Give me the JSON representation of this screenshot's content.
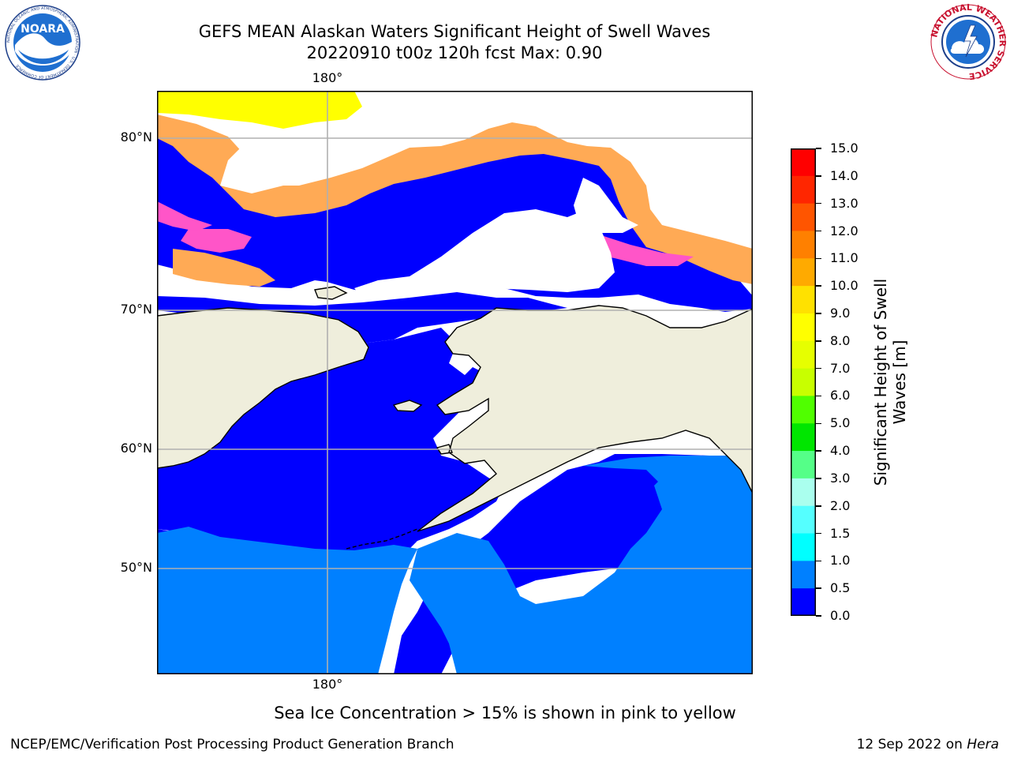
{
  "header": {
    "title_line1": "GEFS MEAN Alaskan Waters Significant Height of Swell Waves",
    "title_line2": "20220910 t00z 120h fcst   Max: 0.90"
  },
  "logos": {
    "left": {
      "name": "NOARA",
      "ring_text": "NATIONAL OCEANIC AND ATMOSPHERIC ADMINISTRATION · U.S. DEPARTMENT OF COMMERCE"
    },
    "right": {
      "ring_text": "NATIONAL WEATHER SERVICE"
    }
  },
  "map": {
    "top_lon_label": "180°",
    "bottom_lon_label": "180°",
    "lat_labels": [
      "80°N",
      "70°N",
      "60°N",
      "50°N"
    ],
    "colors": {
      "land": "#efeedc",
      "ocean_low": "#0000ff",
      "ocean_mid": "#0080ff",
      "no_data": "#ffffff",
      "ice_pink": "#ff55c8",
      "ice_orange": "#ffaa55",
      "ice_yellow": "#ffff00",
      "grid": "#b0b0b0",
      "coast": "#000000"
    }
  },
  "colorbar": {
    "label": "Significant Height of Swell Waves [m]",
    "label_line1": "Significant Height of Swell",
    "label_line2": "Waves [m]",
    "ticks": [
      "15.0",
      "14.0",
      "13.0",
      "12.0",
      "11.0",
      "10.0",
      "9.0",
      "8.0",
      "7.0",
      "6.0",
      "5.0",
      "4.0",
      "3.0",
      "2.0",
      "1.5",
      "1.0",
      "0.5",
      "0.0"
    ],
    "bins": [
      {
        "from": 14.0,
        "to": 15.0,
        "color": "#ff0000"
      },
      {
        "from": 13.0,
        "to": 14.0,
        "color": "#ff2600"
      },
      {
        "from": 12.0,
        "to": 13.0,
        "color": "#ff5500"
      },
      {
        "from": 11.0,
        "to": 12.0,
        "color": "#ff8000"
      },
      {
        "from": 10.0,
        "to": 11.0,
        "color": "#ffaa00"
      },
      {
        "from": 9.0,
        "to": 10.0,
        "color": "#ffe100"
      },
      {
        "from": 8.0,
        "to": 9.0,
        "color": "#ffff00"
      },
      {
        "from": 7.0,
        "to": 8.0,
        "color": "#e6ff00"
      },
      {
        "from": 6.0,
        "to": 7.0,
        "color": "#c8ff00"
      },
      {
        "from": 5.0,
        "to": 6.0,
        "color": "#50ff00"
      },
      {
        "from": 4.0,
        "to": 5.0,
        "color": "#00e600"
      },
      {
        "from": 3.0,
        "to": 4.0,
        "color": "#55ff88"
      },
      {
        "from": 2.0,
        "to": 3.0,
        "color": "#aaffee"
      },
      {
        "from": 1.5,
        "to": 2.0,
        "color": "#55ffff"
      },
      {
        "from": 1.0,
        "to": 1.5,
        "color": "#00ffff"
      },
      {
        "from": 0.5,
        "to": 1.0,
        "color": "#0080ff"
      },
      {
        "from": 0.0,
        "to": 0.5,
        "color": "#0000ff"
      }
    ]
  },
  "footnote": "Sea Ice Concentration > 15% is shown in pink to yellow",
  "credit": "NCEP/EMC/Verification Post Processing Product Generation Branch",
  "date": {
    "text": "12 Sep 2022 on ",
    "host": "Hera"
  }
}
